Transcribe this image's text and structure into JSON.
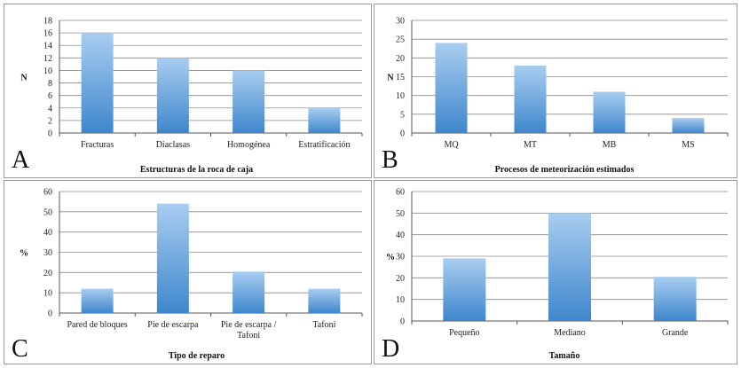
{
  "colors": {
    "bar_top": "#a9cdf0",
    "bar_bottom": "#3e87cc",
    "grid": "#8c8c8c"
  },
  "chart_data": [
    {
      "type": "bar",
      "panel_letter": "A",
      "title": "Estructuras de la roca de caja",
      "ylabel": "N",
      "xlabel": "",
      "categories": [
        "Fracturas",
        "Diaclasas",
        "Homogénea",
        "Estratificación"
      ],
      "values": [
        16,
        12,
        10,
        4
      ],
      "ylim": [
        0,
        18
      ],
      "yticks": [
        0,
        2,
        4,
        6,
        8,
        10,
        12,
        14,
        16,
        18
      ],
      "grid": true,
      "legend": "none"
    },
    {
      "type": "bar",
      "panel_letter": "B",
      "title": "Procesos de meteorización estimados",
      "ylabel": "N",
      "xlabel": "",
      "categories": [
        "MQ",
        "MT",
        "MB",
        "MS"
      ],
      "values": [
        24,
        18,
        11,
        4
      ],
      "ylim": [
        0,
        30
      ],
      "yticks": [
        0,
        5,
        10,
        15,
        20,
        25,
        30
      ],
      "grid": true,
      "legend": "none"
    },
    {
      "type": "bar",
      "panel_letter": "C",
      "title": "Tipo de reparo",
      "ylabel": "%",
      "xlabel": "",
      "categories": [
        [
          "Pared de bloques"
        ],
        [
          "Pie de escarpa"
        ],
        [
          "Pie de escarpa /",
          "Tafoni"
        ],
        [
          "Tafoni"
        ]
      ],
      "values": [
        12,
        54,
        20.5,
        12
      ],
      "ylim": [
        0,
        60
      ],
      "yticks": [
        0,
        10,
        20,
        30,
        40,
        50,
        60
      ],
      "grid": true,
      "legend": "none"
    },
    {
      "type": "bar",
      "panel_letter": "D",
      "title": "Tamaño",
      "ylabel": "%",
      "xlabel": "",
      "categories": [
        "Pequeño",
        "Mediano",
        "Grande"
      ],
      "values": [
        29,
        50,
        20.5
      ],
      "ylim": [
        0,
        60
      ],
      "yticks": [
        0,
        10,
        20,
        30,
        40,
        50,
        60
      ],
      "grid": true,
      "legend": "none"
    }
  ]
}
